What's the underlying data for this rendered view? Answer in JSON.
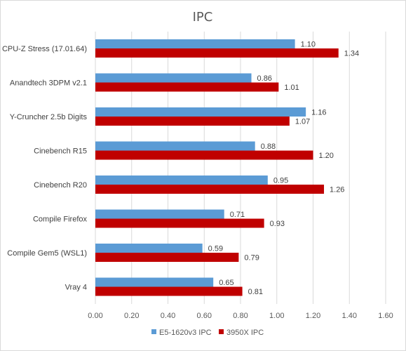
{
  "chart_data": {
    "type": "bar",
    "orientation": "horizontal",
    "title": "IPC",
    "categories": [
      "CPU-Z Stress (17.01.64)",
      "Anandtech 3DPM v2.1",
      "Y-Cruncher 2.5b Digits",
      "Cinebench R15",
      "Cinebench R20",
      "Compile Firefox",
      "Compile Gem5 (WSL1)",
      "Vray 4"
    ],
    "series": [
      {
        "name": "E5-1620v3 IPC",
        "color": "#5b9bd5",
        "values": [
          1.1,
          0.86,
          1.16,
          0.88,
          0.95,
          0.71,
          0.59,
          0.65
        ],
        "labels": [
          "1.10",
          "0.86",
          "1.16",
          "0.88",
          "0.95",
          "0.71",
          "0.59",
          "0.65"
        ]
      },
      {
        "name": "3950X IPC",
        "color": "#c00000",
        "values": [
          1.34,
          1.01,
          1.07,
          1.2,
          1.26,
          0.93,
          0.79,
          0.81
        ],
        "labels": [
          "1.34",
          "1.01",
          "1.07",
          "1.20",
          "1.26",
          "0.93",
          "0.79",
          "0.81"
        ]
      }
    ],
    "xlim": [
      0,
      1.6
    ],
    "ticks": [
      "0.00",
      "0.20",
      "0.40",
      "0.60",
      "0.80",
      "1.00",
      "1.20",
      "1.40",
      "1.60"
    ],
    "grid": "vertical",
    "legend": "bottom",
    "gridline_color": "#d9d9d9"
  }
}
